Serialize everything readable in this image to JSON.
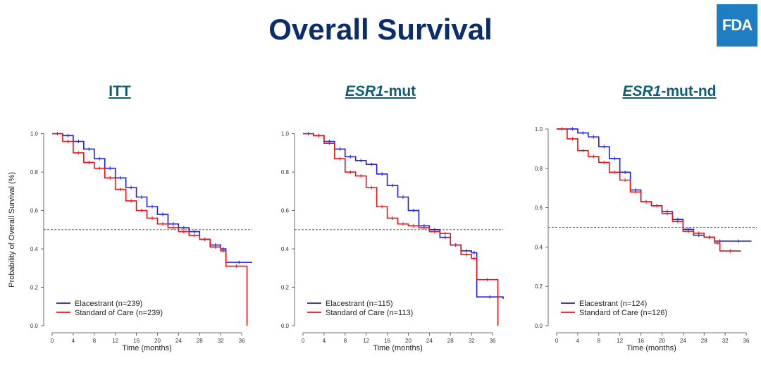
{
  "page": {
    "title": "Overall Survival",
    "logo_text": "FDA",
    "panel_titles": [
      {
        "italic": "",
        "rest": "ITT"
      },
      {
        "italic": "ESR1",
        "rest": "-mut"
      },
      {
        "italic": "ESR1",
        "rest": "-mut-nd"
      }
    ]
  },
  "colors": {
    "title": "#0b2d6b",
    "panel_title": "#0f5e73",
    "logo_bg": "#1f7ec1",
    "elacestrant": "#1f1fe0",
    "standard_of_care": "#e8141a"
  },
  "chart_data": [
    {
      "type": "line",
      "title": "ITT",
      "xlabel": "Time (months)",
      "ylabel": "Probability of Overall Survival (%)",
      "xlim": [
        0,
        38
      ],
      "ylim": [
        0,
        1.05
      ],
      "xticks": [
        0,
        4,
        8,
        12,
        16,
        20,
        24,
        28,
        32,
        36
      ],
      "yticks": [
        "0.0",
        "0.2",
        "0.4",
        "0.6",
        "0.8",
        "1.0"
      ],
      "reference_line": 0.5,
      "legend_position": "bottom-left",
      "series": [
        {
          "name": "Elacestrant (n=239)",
          "color": "#1f1fe0",
          "x": [
            0,
            2,
            4,
            6,
            8,
            10,
            12,
            14,
            16,
            18,
            20,
            22,
            24,
            26,
            28,
            30,
            32,
            33,
            38
          ],
          "y": [
            1.0,
            0.99,
            0.96,
            0.92,
            0.87,
            0.82,
            0.77,
            0.72,
            0.67,
            0.62,
            0.58,
            0.53,
            0.51,
            0.49,
            0.45,
            0.42,
            0.4,
            0.33,
            0.33
          ]
        },
        {
          "name": "Standard of Care (n=239)",
          "color": "#e8141a",
          "x": [
            0,
            2,
            4,
            6,
            8,
            10,
            12,
            14,
            16,
            18,
            20,
            22,
            24,
            26,
            28,
            30,
            32,
            33,
            37,
            37
          ],
          "y": [
            1.0,
            0.96,
            0.9,
            0.85,
            0.82,
            0.77,
            0.71,
            0.65,
            0.6,
            0.56,
            0.53,
            0.51,
            0.49,
            0.47,
            0.45,
            0.41,
            0.39,
            0.31,
            0.31,
            0.0
          ]
        }
      ]
    },
    {
      "type": "line",
      "title": "ESR1-mut",
      "xlabel": "Time (months)",
      "ylabel": "",
      "xlim": [
        0,
        38
      ],
      "ylim": [
        0,
        1.05
      ],
      "xticks": [
        0,
        4,
        8,
        12,
        16,
        20,
        24,
        28,
        32,
        36
      ],
      "yticks": [
        "0.0",
        "0.2",
        "0.4",
        "0.6",
        "0.8",
        "1.0"
      ],
      "reference_line": 0.5,
      "legend_position": "bottom-left",
      "series": [
        {
          "name": "Elacestrant (n=115)",
          "color": "#1f1fe0",
          "x": [
            0,
            2,
            4,
            6,
            8,
            10,
            12,
            14,
            16,
            18,
            20,
            22,
            24,
            26,
            28,
            30,
            32,
            33,
            38
          ],
          "y": [
            1.0,
            0.99,
            0.96,
            0.92,
            0.88,
            0.86,
            0.84,
            0.79,
            0.73,
            0.67,
            0.6,
            0.52,
            0.5,
            0.46,
            0.42,
            0.39,
            0.38,
            0.15,
            0.14
          ]
        },
        {
          "name": "Standard of Care (n=113)",
          "color": "#e8141a",
          "x": [
            0,
            2,
            4,
            6,
            8,
            10,
            12,
            14,
            16,
            18,
            20,
            22,
            24,
            26,
            28,
            30,
            32,
            33,
            37,
            37
          ],
          "y": [
            1.0,
            0.99,
            0.95,
            0.87,
            0.8,
            0.78,
            0.72,
            0.62,
            0.56,
            0.53,
            0.52,
            0.51,
            0.49,
            0.48,
            0.42,
            0.37,
            0.35,
            0.24,
            0.24,
            0.0
          ]
        }
      ]
    },
    {
      "type": "line",
      "title": "ESR1-mut-nd",
      "xlabel": "Time (months)",
      "ylabel": "",
      "xlim": [
        0,
        38
      ],
      "ylim": [
        0,
        1.05
      ],
      "xticks": [
        0,
        4,
        8,
        12,
        16,
        20,
        24,
        28,
        32,
        36
      ],
      "yticks": [
        "0.0",
        "0.2",
        "0.4",
        "0.6",
        "0.8",
        "1.0"
      ],
      "reference_line": 0.5,
      "legend_position": "bottom-left",
      "series": [
        {
          "name": "Elacestrant (n=124)",
          "color": "#1f1fe0",
          "x": [
            0,
            2,
            4,
            6,
            8,
            10,
            12,
            14,
            16,
            18,
            20,
            22,
            24,
            26,
            28,
            30,
            32,
            37
          ],
          "y": [
            1.0,
            1.0,
            0.98,
            0.96,
            0.91,
            0.85,
            0.78,
            0.69,
            0.63,
            0.61,
            0.58,
            0.54,
            0.49,
            0.46,
            0.45,
            0.43,
            0.43,
            0.43
          ]
        },
        {
          "name": "Standard of Care (n=126)",
          "color": "#e8141a",
          "x": [
            0,
            2,
            4,
            6,
            8,
            10,
            12,
            14,
            16,
            18,
            20,
            22,
            24,
            26,
            28,
            30,
            31,
            35
          ],
          "y": [
            1.0,
            0.95,
            0.89,
            0.86,
            0.83,
            0.78,
            0.74,
            0.68,
            0.63,
            0.61,
            0.57,
            0.53,
            0.48,
            0.47,
            0.45,
            0.42,
            0.38,
            0.38
          ]
        }
      ]
    }
  ]
}
